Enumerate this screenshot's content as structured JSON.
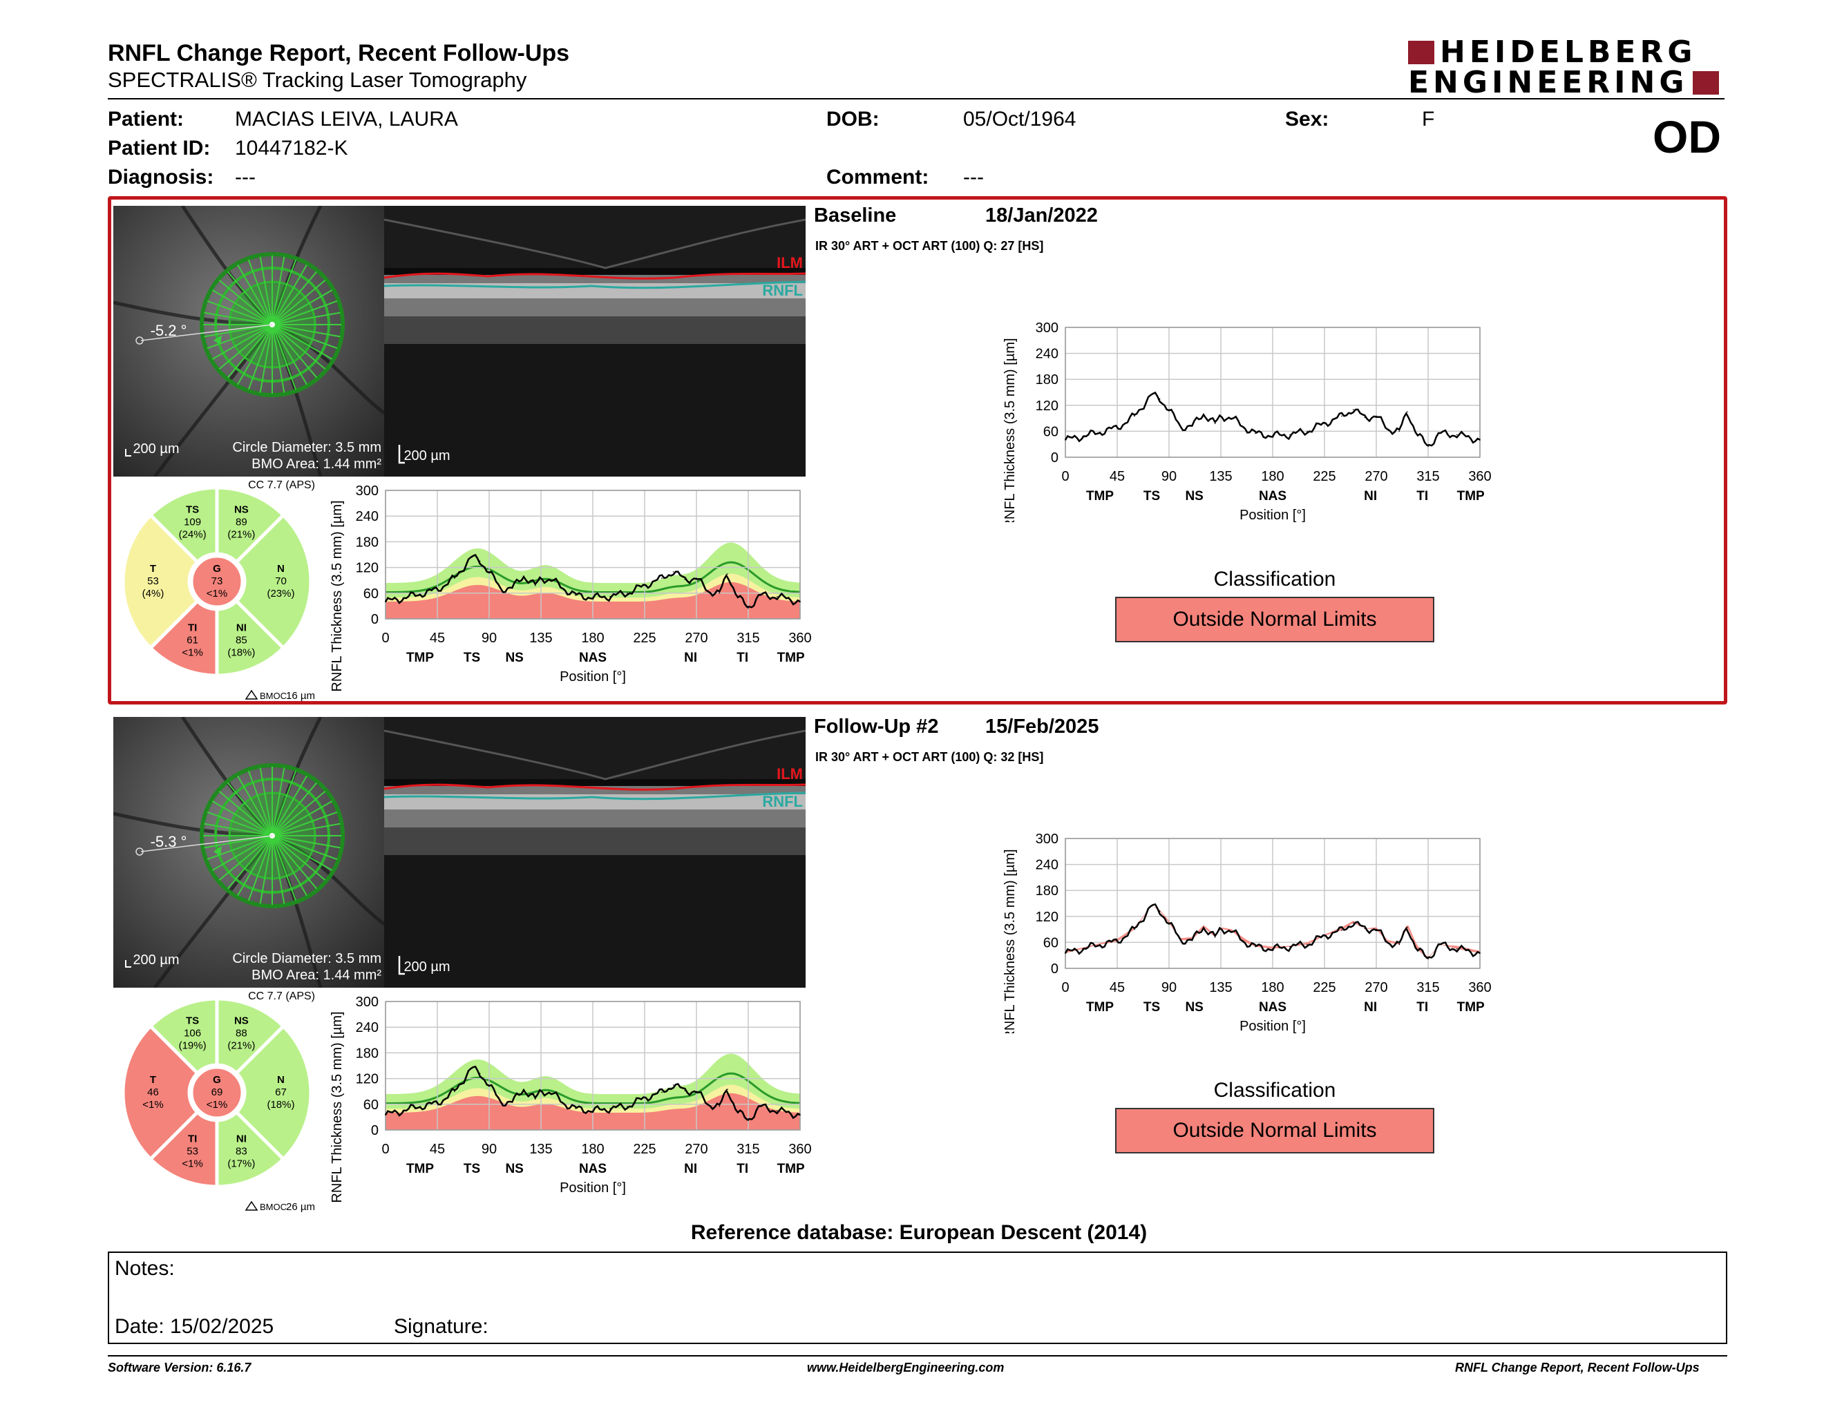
{
  "header": {
    "title": "RNFL Change Report, Recent Follow-Ups",
    "subtitle": "SPECTRALIS® Tracking Laser Tomography",
    "logo_line1": "HEIDELBERG",
    "logo_line2": "ENGINEERING",
    "eye": "OD"
  },
  "patient": {
    "patient_label": "Patient:",
    "patient_value": "MACIAS LEIVA, LAURA",
    "dob_label": "DOB:",
    "dob_value": "05/Oct/1964",
    "sex_label": "Sex:",
    "sex_value": "F",
    "id_label": "Patient ID:",
    "id_value": "10447182-K",
    "diag_label": "Diagnosis:",
    "diag_value": "---",
    "comment_label": "Comment:",
    "comment_value": "---"
  },
  "colors": {
    "frame_red": "#c0161b",
    "normal_green": "#b9f08a",
    "borderline_yellow": "#f7f2a0",
    "outside_red": "#f4837b",
    "logo_red": "#8f1b2b"
  },
  "common": {
    "scale_label": "200 µm",
    "circle_diam": "Circle Diameter: 3.5 mm",
    "bmo_area": "BMO Area: 1.44 mm²",
    "cc": "CC 7.7 (APS)",
    "ilm": "ILM",
    "rnfl": "RNFL",
    "y_axis": "RNFL Thickness (3.5 mm) [µm]",
    "x_axis": "Position [°]",
    "x_ticks": [
      "0",
      "45",
      "90",
      "135",
      "180",
      "225",
      "270",
      "315",
      "360"
    ],
    "y_ticks": [
      "0",
      "60",
      "120",
      "180",
      "240",
      "300"
    ],
    "sector_ticks": [
      "TMP",
      "TS",
      "NS",
      "NAS",
      "NI",
      "TI",
      "TMP"
    ],
    "classification_label": "Classification",
    "bmoc_label": "BMOC"
  },
  "baseline": {
    "exam_label": "Baseline",
    "date": "18/Jan/2022",
    "acq": "IR 30° ART + OCT ART (100) Q: 27 [HS]",
    "angle": "-5.2 °",
    "bmoc_value": "16 µm",
    "classification": "Outside Normal Limits",
    "sectors": {
      "TS": {
        "v": "109",
        "p": "(24%)",
        "c": "green"
      },
      "NS": {
        "v": "89",
        "p": "(21%)",
        "c": "green"
      },
      "T": {
        "v": "53",
        "p": "(4%)",
        "c": "yellow"
      },
      "G": {
        "v": "73",
        "p": "<1%",
        "c": "red"
      },
      "N": {
        "v": "70",
        "p": "(23%)",
        "c": "green"
      },
      "TI": {
        "v": "61",
        "p": "<1%",
        "c": "red"
      },
      "NI": {
        "v": "85",
        "p": "(18%)",
        "c": "green"
      }
    }
  },
  "followup": {
    "exam_label": "Follow-Up #2",
    "date": "15/Feb/2025",
    "acq": "IR 30° ART + OCT ART (100) Q: 32 [HS]",
    "angle": "-5.3 °",
    "bmoc_value": "26 µm",
    "classification": "Outside Normal Limits",
    "sectors": {
      "TS": {
        "v": "106",
        "p": "(19%)",
        "c": "green"
      },
      "NS": {
        "v": "88",
        "p": "(21%)",
        "c": "green"
      },
      "T": {
        "v": "46",
        "p": "<1%",
        "c": "red"
      },
      "G": {
        "v": "69",
        "p": "<1%",
        "c": "red"
      },
      "N": {
        "v": "67",
        "p": "(18%)",
        "c": "green"
      },
      "TI": {
        "v": "53",
        "p": "<1%",
        "c": "red"
      },
      "NI": {
        "v": "83",
        "p": "(17%)",
        "c": "green"
      }
    }
  },
  "chart_data": [
    {
      "type": "line",
      "name": "baseline-profile",
      "xlabel": "Position [°]",
      "ylabel": "RNFL Thickness (3.5 mm) [µm]",
      "xlim": [
        0,
        360
      ],
      "ylim": [
        0,
        300
      ],
      "x": [
        0,
        15,
        30,
        45,
        60,
        75,
        82,
        90,
        100,
        110,
        120,
        130,
        135,
        145,
        155,
        165,
        180,
        195,
        210,
        225,
        240,
        250,
        260,
        270,
        280,
        290,
        297,
        305,
        315,
        325,
        340,
        360
      ],
      "values": [
        40,
        48,
        58,
        68,
        95,
        145,
        135,
        110,
        70,
        72,
        100,
        78,
        95,
        90,
        70,
        55,
        50,
        52,
        60,
        78,
        95,
        110,
        92,
        95,
        65,
        60,
        105,
        55,
        25,
        55,
        52,
        40
      ]
    },
    {
      "type": "line",
      "name": "followup-profile",
      "xlabel": "Position [°]",
      "ylabel": "RNFL Thickness (3.5 mm) [µm]",
      "xlim": [
        0,
        360
      ],
      "ylim": [
        0,
        300
      ],
      "x": [
        0,
        15,
        30,
        45,
        60,
        75,
        82,
        90,
        100,
        110,
        120,
        130,
        135,
        145,
        155,
        165,
        180,
        195,
        210,
        225,
        240,
        250,
        260,
        270,
        280,
        290,
        297,
        305,
        315,
        325,
        340,
        360
      ],
      "values": [
        35,
        45,
        55,
        62,
        90,
        145,
        132,
        105,
        65,
        65,
        95,
        72,
        92,
        85,
        62,
        50,
        45,
        50,
        55,
        75,
        88,
        105,
        92,
        90,
        60,
        55,
        95,
        45,
        22,
        55,
        45,
        35
      ],
      "baseline": [
        40,
        48,
        58,
        68,
        95,
        145,
        135,
        110,
        70,
        72,
        100,
        78,
        95,
        90,
        70,
        55,
        50,
        52,
        60,
        78,
        95,
        110,
        92,
        95,
        65,
        60,
        105,
        55,
        25,
        55,
        52,
        40
      ]
    }
  ],
  "reference": "Reference database: European Descent (2014)",
  "notes": {
    "notes_label": "Notes:",
    "date_label": "Date: 15/02/2025",
    "signature_label": "Signature:"
  },
  "footer": {
    "version": "Software Version: 6.16.7",
    "website": "www.HeidelbergEngineering.com",
    "report_name": "RNFL Change Report, Recent Follow-Ups"
  }
}
